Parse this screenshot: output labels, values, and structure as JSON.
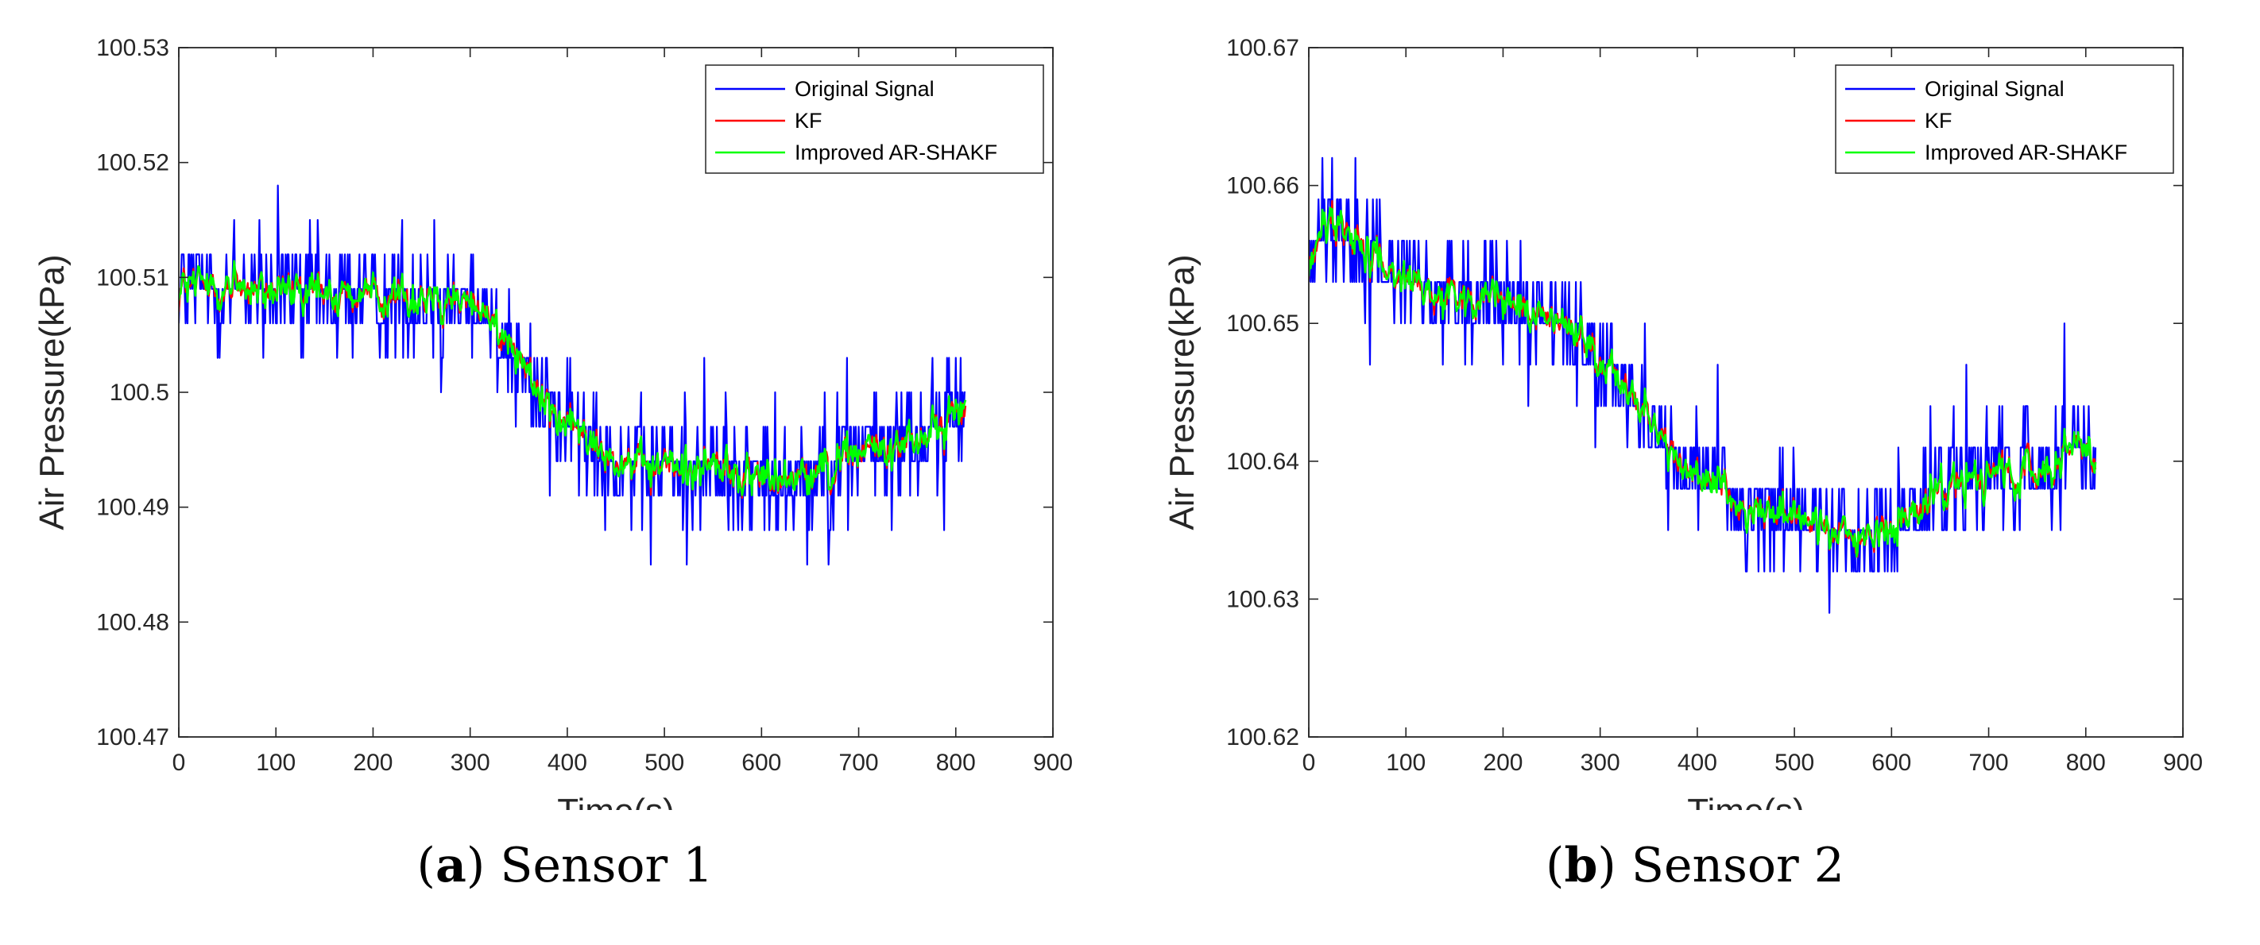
{
  "chart_data": [
    {
      "type": "line",
      "panel_label": "a",
      "caption": "Sensor 1",
      "xlabel": "Time(s)",
      "ylabel": "Air Pressure(kPa)",
      "xlim": [
        0,
        900
      ],
      "ylim": [
        100.47,
        100.53
      ],
      "xticks": [
        "0",
        "100",
        "200",
        "300",
        "400",
        "500",
        "600",
        "700",
        "800",
        "900"
      ],
      "yticks": [
        "100.47",
        "100.48",
        "100.49",
        "100.5",
        "100.51",
        "100.52",
        "100.53"
      ],
      "legend_position": "top-right",
      "data_duration_s": 810,
      "series": [
        {
          "name": "Original Signal",
          "color": "#0000ff",
          "trend_x": [
            0,
            50,
            100,
            150,
            200,
            250,
            300,
            340,
            380,
            420,
            460,
            500,
            550,
            600,
            650,
            700,
            750,
            790,
            810
          ],
          "trend_y": [
            100.5095,
            100.5095,
            100.5085,
            100.5085,
            100.5085,
            100.5085,
            100.508,
            100.505,
            100.4985,
            100.496,
            100.494,
            100.4935,
            100.4935,
            100.4925,
            100.4935,
            100.4945,
            100.4955,
            100.4975,
            100.4985
          ],
          "noise_amplitude": 0.0045,
          "quantization_step": 0.003
        },
        {
          "name": "KF",
          "color": "#ff0000",
          "smoothing": 0.35,
          "noise_amplitude": 0.0025
        },
        {
          "name": "Improved AR-SHAKF",
          "color": "#00ff00",
          "smoothing": 0.45,
          "noise_amplitude": 0.0018
        }
      ]
    },
    {
      "type": "line",
      "panel_label": "b",
      "caption": "Sensor 2",
      "xlabel": "Time(s)",
      "ylabel": "Air Pressure(kPa)",
      "xlim": [
        0,
        900
      ],
      "ylim": [
        100.62,
        100.67
      ],
      "xticks": [
        "0",
        "100",
        "200",
        "300",
        "400",
        "500",
        "600",
        "700",
        "800",
        "900"
      ],
      "yticks": [
        "100.62",
        "100.63",
        "100.64",
        "100.65",
        "100.66",
        "100.67"
      ],
      "legend_position": "top-right",
      "data_duration_s": 810,
      "series": [
        {
          "name": "Original Signal",
          "color": "#0000ff",
          "trend_x": [
            0,
            20,
            40,
            80,
            120,
            160,
            200,
            240,
            280,
            310,
            350,
            400,
            450,
            500,
            550,
            600,
            650,
            700,
            750,
            800,
            810
          ],
          "trend_y": [
            100.6545,
            100.6575,
            100.657,
            100.654,
            100.652,
            100.6515,
            100.652,
            100.6505,
            100.6495,
            100.6465,
            100.643,
            100.6385,
            100.6365,
            100.636,
            100.6345,
            100.635,
            100.638,
            100.6385,
            100.639,
            100.6415,
            100.64
          ],
          "noise_amplitude": 0.0035,
          "quantization_step": 0.003
        },
        {
          "name": "KF",
          "color": "#ff0000",
          "smoothing": 0.35,
          "noise_amplitude": 0.002
        },
        {
          "name": "Improved AR-SHAKF",
          "color": "#00ff00",
          "smoothing": 0.45,
          "noise_amplitude": 0.0015
        }
      ]
    }
  ]
}
